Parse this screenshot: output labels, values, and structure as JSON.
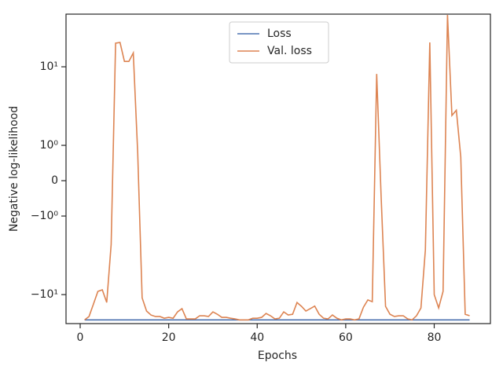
{
  "chart_data": {
    "type": "line",
    "xlabel": "Epochs",
    "ylabel": "Negative log-likelihood",
    "yscale": "symlog",
    "linthresh": 1,
    "linscale": 0.405,
    "x": [
      1,
      2,
      3,
      4,
      5,
      6,
      7,
      8,
      9,
      10,
      11,
      12,
      13,
      14,
      15,
      16,
      17,
      18,
      19,
      20,
      21,
      22,
      23,
      24,
      25,
      26,
      27,
      28,
      29,
      30,
      31,
      32,
      33,
      34,
      35,
      36,
      37,
      38,
      39,
      40,
      41,
      42,
      43,
      44,
      45,
      46,
      47,
      48,
      49,
      50,
      51,
      52,
      53,
      54,
      55,
      56,
      57,
      58,
      59,
      60,
      61,
      62,
      63,
      64,
      65,
      66,
      67,
      68,
      69,
      70,
      71,
      72,
      73,
      74,
      75,
      76,
      77,
      78,
      79,
      80,
      81,
      82,
      83,
      84,
      85,
      86,
      87,
      88
    ],
    "series": [
      {
        "name": "Loss",
        "color": "#4c72b0",
        "values": [
          -21,
          -21,
          -21,
          -21,
          -21,
          -21,
          -21,
          -21,
          -21,
          -21,
          -21,
          -21,
          -21,
          -21,
          -21,
          -21,
          -21,
          -21,
          -21,
          -21,
          -21,
          -21,
          -21,
          -21,
          -21,
          -21,
          -21,
          -21,
          -21,
          -21,
          -21,
          -21,
          -21,
          -21,
          -21,
          -21,
          -21,
          -21,
          -21,
          -21,
          -21,
          -21,
          -21,
          -21,
          -21,
          -21,
          -21,
          -21,
          -21,
          -21,
          -21,
          -21,
          -21,
          -21,
          -21,
          -21,
          -21,
          -21,
          -21,
          -21,
          -21,
          -21,
          -21,
          -21,
          -21,
          -21,
          -21,
          -21,
          -21,
          -21,
          -21,
          -21,
          -21,
          -21,
          -21,
          -21,
          -21,
          -21,
          -21,
          -21,
          -21,
          -21,
          -21,
          -21,
          -21,
          -21,
          -21,
          -21
        ]
      },
      {
        "name": "Val. loss",
        "color": "#dd8452",
        "values": [
          -21,
          -19,
          -13.2,
          -9.1,
          -8.7,
          -12.6,
          -2.3,
          20,
          20.4,
          11.7,
          11.7,
          15,
          0.78,
          -11,
          -16.2,
          -18.2,
          -19,
          -19,
          -20,
          -19.5,
          -20,
          -16.6,
          -15.1,
          -20.4,
          -20.4,
          -20.4,
          -18.6,
          -18.6,
          -19,
          -16.6,
          -17.8,
          -19.5,
          -19.5,
          -20,
          -20.4,
          -21,
          -21,
          -21,
          -20,
          -20,
          -19.5,
          -17.4,
          -18.6,
          -20.4,
          -20,
          -16.6,
          -18.2,
          -17.8,
          -12.6,
          -14.1,
          -16.2,
          -15.1,
          -14,
          -17.8,
          -20,
          -20.4,
          -18.2,
          -20,
          -21,
          -20.4,
          -20.4,
          -21,
          -20.4,
          -14.5,
          -11.7,
          -12.3,
          8.1,
          -0.44,
          -14.1,
          -17.8,
          -19,
          -18.6,
          -18.6,
          -20.4,
          -21,
          -18.6,
          -14.8,
          -2.7,
          20.4,
          -10,
          -14.8,
          -9.1,
          45.7,
          2.4,
          2.8,
          0.67,
          -17.8,
          -18.6
        ]
      }
    ],
    "xlim": [
      -3.2,
      92.7
    ],
    "xticks": [
      0,
      20,
      40,
      60,
      80
    ],
    "ylim": [
      -23.4,
      46.8
    ],
    "yticks": [
      {
        "value": -10,
        "label": "−10¹"
      },
      {
        "value": -1,
        "label": "−10⁰"
      },
      0,
      {
        "value": 1,
        "label": "10⁰"
      },
      {
        "value": 10,
        "label": "10¹"
      }
    ],
    "legend": "upper center"
  }
}
